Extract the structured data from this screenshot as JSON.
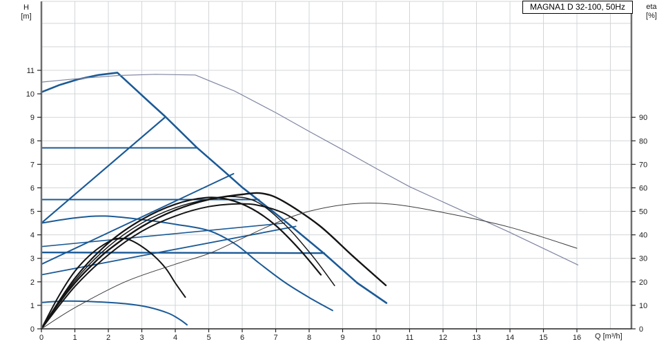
{
  "title_box": "MAGNA1 D 32-100, 50Hz",
  "axes": {
    "left_label_line1": "H",
    "left_label_line2": "[m]",
    "right_label_line1": "eta",
    "right_label_line2": "[%]",
    "x_label": "Q [m³/h]"
  },
  "chart_data": {
    "type": "line",
    "title": "MAGNA1 D 32-100, 50Hz",
    "x_axis": {
      "label": "Q [m³/h]",
      "min": 0,
      "max": 16,
      "ticks": [
        0,
        1,
        2,
        3,
        4,
        5,
        6,
        7,
        8,
        9,
        10,
        11,
        12,
        13,
        14,
        15,
        16
      ],
      "grid_to": 17
    },
    "y_left_axis": {
      "label": "H [m]",
      "min": 0,
      "max": 14,
      "ticks": [
        0,
        1,
        2,
        3,
        4,
        5,
        6,
        7,
        8,
        9,
        10,
        11
      ],
      "grid_to": 13
    },
    "y_right_axis": {
      "label": "eta [%]",
      "min": 0,
      "ticks": [
        0,
        10,
        20,
        30,
        40,
        50,
        60,
        70,
        80,
        90
      ],
      "scale_note": "eta% = 10 x H[m] on shared pixel scale"
    },
    "grid": true,
    "legend": "none",
    "colors": {
      "pump_blue": "#1b5a96",
      "parallel_gray_blue": "#7d84a0",
      "eta_black": "#141414",
      "eta_thin": "#3a3a3a",
      "gridline": "#d2d5d8",
      "axis_frame": "#6e6e6e",
      "axis_line": "#222222"
    },
    "series": [
      {
        "name": "qh-max-single",
        "axis": "H",
        "color": "#1b5a96",
        "width": 2.6,
        "smooth": false,
        "points": [
          [
            0,
            10.07
          ],
          [
            0.55,
            10.38
          ],
          [
            1.1,
            10.62
          ],
          [
            1.7,
            10.8
          ],
          [
            2.27,
            10.9
          ],
          [
            3.2,
            9.68
          ],
          [
            3.71,
            9.02
          ],
          [
            4.64,
            7.72
          ],
          [
            5.5,
            6.65
          ],
          [
            6.0,
            6.02
          ],
          [
            7.25,
            4.62
          ],
          [
            8.45,
            3.2
          ],
          [
            9.44,
            1.95
          ],
          [
            10.31,
            1.1
          ]
        ]
      },
      {
        "name": "qh-max-parallel",
        "axis": "H",
        "color": "#7d84a0",
        "width": 1.2,
        "smooth": false,
        "points": [
          [
            0,
            10.5
          ],
          [
            0.6,
            10.58
          ],
          [
            1.2,
            10.66
          ],
          [
            2.3,
            10.78
          ],
          [
            3.4,
            10.83
          ],
          [
            4.6,
            10.8
          ],
          [
            5.2,
            10.45
          ],
          [
            5.77,
            10.12
          ],
          [
            7,
            9.2
          ],
          [
            8,
            8.4
          ],
          [
            9,
            7.62
          ],
          [
            10.21,
            6.66
          ],
          [
            11,
            6.05
          ],
          [
            12.06,
            5.36
          ],
          [
            14,
            4.1
          ],
          [
            16.03,
            2.72
          ]
        ]
      },
      {
        "name": "cp-setting-high",
        "axis": "H",
        "color": "#1b5a96",
        "width": 2.0,
        "smooth": false,
        "points": [
          [
            0,
            7.7
          ],
          [
            4.66,
            7.7
          ]
        ]
      },
      {
        "name": "cp-setting-mid",
        "axis": "H",
        "color": "#1b5a96",
        "width": 2.0,
        "smooth": false,
        "points": [
          [
            0,
            5.5
          ],
          [
            6.5,
            5.5
          ]
        ]
      },
      {
        "name": "cp-setting-low",
        "axis": "H",
        "color": "#1b5a96",
        "width": 2.4,
        "smooth": false,
        "points": [
          [
            0,
            3.25
          ],
          [
            8.45,
            3.22
          ]
        ]
      },
      {
        "name": "pp-setting-a",
        "axis": "H",
        "color": "#1b5a96",
        "width": 2.2,
        "smooth": false,
        "points": [
          [
            0,
            4.5
          ],
          [
            3.71,
            9.02
          ]
        ]
      },
      {
        "name": "pp-setting-b",
        "axis": "H",
        "color": "#1b5a96",
        "width": 2.0,
        "smooth": false,
        "points": [
          [
            0,
            2.75
          ],
          [
            5.74,
            6.6
          ]
        ]
      },
      {
        "name": "pp-setting-c",
        "axis": "H",
        "color": "#1b5a96",
        "width": 1.6,
        "smooth": false,
        "points": [
          [
            0,
            3.5
          ],
          [
            7.27,
            4.5
          ]
        ]
      },
      {
        "name": "pp-setting-d",
        "axis": "H",
        "color": "#1b5a96",
        "width": 1.8,
        "smooth": false,
        "points": [
          [
            0,
            2.3
          ],
          [
            7.6,
            4.36
          ]
        ]
      },
      {
        "name": "qh-speed-mid",
        "axis": "H",
        "color": "#1b5a96",
        "width": 2.0,
        "smooth": true,
        "points": [
          [
            0,
            4.5
          ],
          [
            1,
            4.72
          ],
          [
            1.9,
            4.8
          ],
          [
            3,
            4.65
          ],
          [
            4,
            4.45
          ],
          [
            5,
            4.18
          ],
          [
            5.8,
            3.6
          ],
          [
            6.5,
            2.8
          ],
          [
            7.3,
            1.95
          ],
          [
            8.1,
            1.25
          ],
          [
            8.7,
            0.78
          ]
        ]
      },
      {
        "name": "qh-min",
        "axis": "H",
        "color": "#1b5a96",
        "width": 2.0,
        "smooth": true,
        "points": [
          [
            0,
            1.12
          ],
          [
            0.7,
            1.18
          ],
          [
            1.5,
            1.16
          ],
          [
            2.5,
            1.07
          ],
          [
            3.2,
            0.92
          ],
          [
            3.8,
            0.66
          ],
          [
            4.15,
            0.38
          ],
          [
            4.35,
            0.17
          ]
        ]
      },
      {
        "name": "eta-max",
        "axis": "eta",
        "color": "#141414",
        "width": 2.4,
        "smooth": true,
        "points": [
          [
            0,
            0
          ],
          [
            0.5,
            10.5
          ],
          [
            1,
            19.5
          ],
          [
            1.5,
            27
          ],
          [
            2,
            33.5
          ],
          [
            3,
            43.5
          ],
          [
            4,
            50.5
          ],
          [
            5,
            55
          ],
          [
            6,
            57.2
          ],
          [
            6.6,
            57.6
          ],
          [
            7.2,
            54.5
          ],
          [
            8.3,
            44
          ],
          [
            9.3,
            31
          ],
          [
            10.29,
            18.5
          ]
        ]
      },
      {
        "name": "eta-setting-b",
        "axis": "eta",
        "color": "#141414",
        "width": 1.5,
        "smooth": true,
        "points": [
          [
            0,
            0
          ],
          [
            1,
            20.5
          ],
          [
            2,
            35
          ],
          [
            3,
            45
          ],
          [
            4,
            51.5
          ],
          [
            5,
            55.2
          ],
          [
            5.8,
            56.2
          ],
          [
            6.5,
            53.5
          ],
          [
            7.3,
            44
          ],
          [
            8.1,
            31
          ],
          [
            8.76,
            18.4
          ]
        ]
      },
      {
        "name": "eta-setting-c",
        "axis": "eta",
        "color": "#141414",
        "width": 2.2,
        "smooth": true,
        "points": [
          [
            0,
            0
          ],
          [
            1,
            21.5
          ],
          [
            2,
            36.5
          ],
          [
            3,
            46.5
          ],
          [
            4,
            53
          ],
          [
            4.9,
            55.8
          ],
          [
            5.6,
            55
          ],
          [
            6.3,
            51
          ],
          [
            7.0,
            44
          ],
          [
            7.7,
            34
          ],
          [
            8.35,
            23
          ]
        ]
      },
      {
        "name": "eta-setting-d",
        "axis": "eta",
        "color": "#141414",
        "width": 2.0,
        "smooth": true,
        "points": [
          [
            0,
            0
          ],
          [
            1,
            18
          ],
          [
            2,
            31.5
          ],
          [
            3,
            41.5
          ],
          [
            4,
            48
          ],
          [
            5,
            52
          ],
          [
            6,
            53.2
          ],
          [
            6.6,
            52.2
          ],
          [
            7.2,
            49.5
          ],
          [
            7.63,
            46
          ]
        ]
      },
      {
        "name": "eta-min",
        "axis": "eta",
        "color": "#141414",
        "width": 2.0,
        "smooth": true,
        "points": [
          [
            0,
            0
          ],
          [
            0.5,
            13.5
          ],
          [
            1,
            24.5
          ],
          [
            1.5,
            32
          ],
          [
            2,
            37
          ],
          [
            2.31,
            38.5
          ],
          [
            2.7,
            37.5
          ],
          [
            3.26,
            32.3
          ],
          [
            3.7,
            26
          ],
          [
            4.0,
            19.5
          ],
          [
            4.3,
            13.5
          ]
        ]
      },
      {
        "name": "eta-parallel",
        "axis": "eta",
        "color": "#3a3a3a",
        "width": 1.0,
        "smooth": true,
        "points": [
          [
            0,
            0
          ],
          [
            1,
            9
          ],
          [
            2.5,
            20
          ],
          [
            4,
            27.5
          ],
          [
            5,
            32
          ],
          [
            6,
            38.5
          ],
          [
            7,
            45
          ],
          [
            8,
            50
          ],
          [
            9.3,
            53.2
          ],
          [
            10.5,
            53
          ],
          [
            12,
            49.5
          ],
          [
            14,
            43.2
          ],
          [
            16,
            34.3
          ]
        ]
      }
    ]
  }
}
